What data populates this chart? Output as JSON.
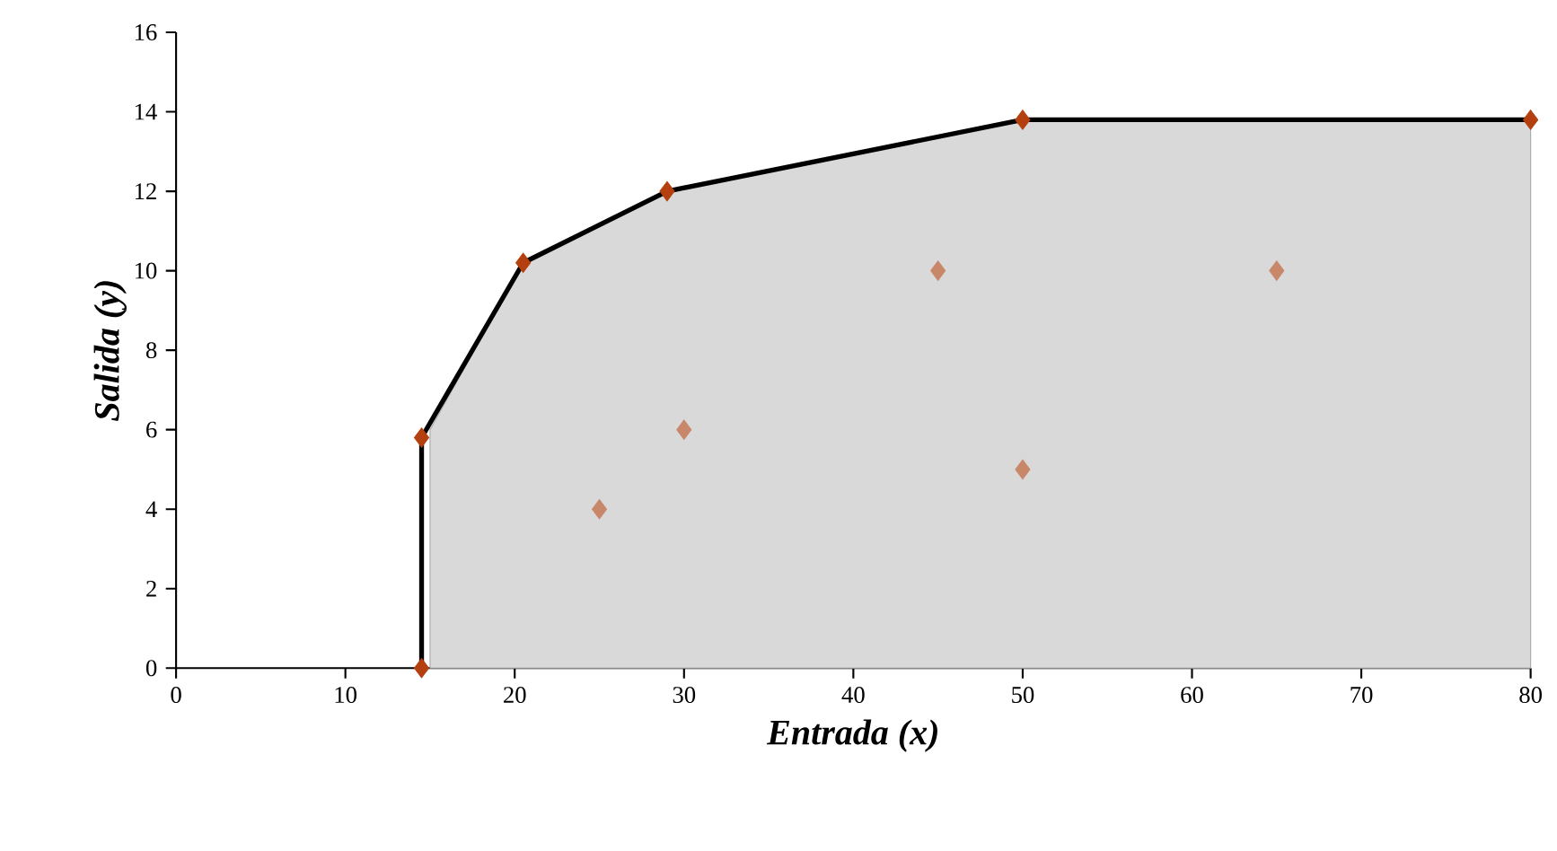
{
  "chart_data": {
    "type": "line",
    "xlabel": "Entrada (x)",
    "ylabel": "Salida (y)",
    "xlim": [
      0,
      80
    ],
    "ylim": [
      0,
      16
    ],
    "xticks": [
      0,
      10,
      20,
      30,
      40,
      50,
      60,
      70,
      80
    ],
    "yticks": [
      0,
      2,
      4,
      6,
      8,
      10,
      12,
      14,
      16
    ],
    "grid": false,
    "series": [
      {
        "type": "area",
        "color": "#d9d9d9",
        "x": [
          15,
          20.5,
          29,
          50,
          80
        ],
        "values": [
          6,
          10.2,
          12,
          13.8,
          13.8
        ]
      },
      {
        "color": "#000000",
        "marker": "none",
        "x": [
          14.5,
          14.5,
          20.5,
          29,
          50,
          80
        ],
        "values": [
          0,
          5.8,
          10.2,
          12,
          13.8,
          13.8
        ]
      },
      {
        "type": "scatter",
        "color": "#b5400f",
        "marker": "diamond",
        "x": [
          14.5,
          14.5,
          20.5,
          29,
          50,
          80
        ],
        "values": [
          0,
          5.8,
          10.2,
          12,
          13.8,
          13.8
        ]
      },
      {
        "type": "scatter",
        "color": "#c9876a",
        "marker": "diamond",
        "x": [
          25,
          30,
          45,
          50,
          65
        ],
        "values": [
          4,
          6,
          10,
          5,
          10
        ]
      }
    ]
  }
}
